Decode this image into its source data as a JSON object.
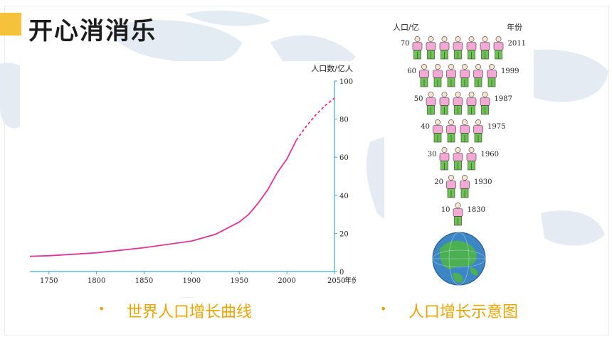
{
  "slide": {
    "title": "开心消消乐",
    "captions": [
      "世界人口增长曲线",
      "人口增长示意图"
    ],
    "bullet": "•"
  },
  "chart_data": [
    {
      "type": "line",
      "title": "",
      "xlabel": "年份",
      "ylabel": "人口数/亿人",
      "x_ticks": [
        "1750",
        "1800",
        "1850",
        "1900",
        "1950",
        "2000",
        "2050"
      ],
      "y_ticks": [
        "0",
        "20",
        "40",
        "60",
        "80",
        "100"
      ],
      "xlim": [
        1730,
        2050
      ],
      "ylim": [
        0,
        100
      ],
      "grid": false,
      "series": [
        {
          "style": "solid",
          "color": "#e0339a",
          "points": [
            [
              1730,
              8
            ],
            [
              1750,
              8.3
            ],
            [
              1800,
              9.8
            ],
            [
              1850,
              12.5
            ],
            [
              1900,
              16
            ],
            [
              1925,
              19.5
            ],
            [
              1950,
              26
            ],
            [
              1960,
              30
            ],
            [
              1970,
              36
            ],
            [
              1980,
              43
            ],
            [
              1990,
              52
            ],
            [
              2000,
              59
            ],
            [
              2010,
              69
            ]
          ]
        },
        {
          "style": "dashed",
          "color": "#e0339a",
          "points": [
            [
              2010,
              69
            ],
            [
              2020,
              76
            ],
            [
              2030,
              82
            ],
            [
              2040,
              87
            ],
            [
              2050,
              91
            ]
          ]
        }
      ]
    },
    {
      "type": "pictogram",
      "header_left": "人口/亿",
      "header_right": "年份",
      "rows": [
        {
          "population": "70",
          "year": "2011",
          "figures": 7
        },
        {
          "population": "60",
          "year": "1999",
          "figures": 6
        },
        {
          "population": "50",
          "year": "1987",
          "figures": 5
        },
        {
          "population": "40",
          "year": "1975",
          "figures": 4
        },
        {
          "population": "30",
          "year": "1960",
          "figures": 3
        },
        {
          "population": "20",
          "year": "1930",
          "figures": 2
        },
        {
          "population": "10",
          "year": "1830",
          "figures": 1
        }
      ]
    }
  ],
  "colors": {
    "accent": "#f6c23b",
    "caption": "#e8a400",
    "axis": "#3aaed0",
    "curve": "#e0339a",
    "shirt": "#f3a9d4",
    "pants": "#6bc44f",
    "globe_ocean": "#3d86c6",
    "globe_land": "#4bb052"
  }
}
